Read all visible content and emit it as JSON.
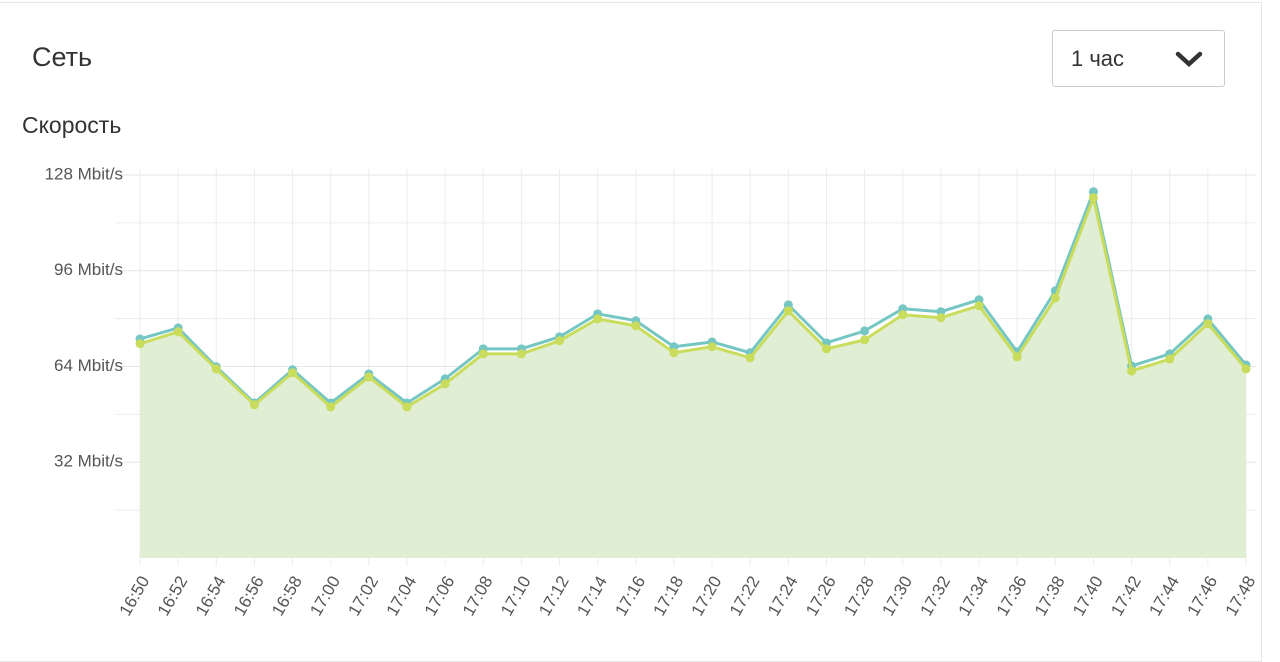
{
  "header": {
    "title": "Сеть",
    "period": "1 час"
  },
  "section": "Скорость",
  "chart_data": {
    "type": "line",
    "categories": [
      "16:50",
      "16:52",
      "16:54",
      "16:56",
      "16:58",
      "17:00",
      "17:02",
      "17:04",
      "17:06",
      "17:08",
      "17:10",
      "17:12",
      "17:14",
      "17:16",
      "17:18",
      "17:20",
      "17:22",
      "17:24",
      "17:26",
      "17:28",
      "17:30",
      "17:32",
      "17:34",
      "17:36",
      "17:38",
      "17:40",
      "17:42",
      "17:44",
      "17:46",
      "17:48"
    ],
    "series": [
      {
        "color": "#76c7c3",
        "values": [
          73.2,
          76.9,
          63.9,
          51.8,
          62.9,
          51.8,
          61.5,
          51.8,
          59.9,
          69.9,
          69.9,
          73.9,
          81.6,
          79.3,
          70.6,
          72.2,
          68.6,
          84.6,
          71.9,
          75.9,
          83.3,
          82.3,
          86.3,
          68.9,
          89.3,
          122.4,
          64.2,
          68.2,
          79.9,
          64.5
        ]
      },
      {
        "color": "#c9dc5c",
        "values": [
          71.6,
          75.6,
          63.2,
          51.2,
          61.9,
          50.5,
          60.5,
          50.5,
          58.2,
          68.2,
          68.2,
          72.6,
          79.9,
          77.6,
          68.6,
          70.6,
          66.9,
          82.6,
          69.9,
          72.9,
          81.3,
          80.3,
          84.3,
          67.2,
          86.9,
          120.4,
          62.5,
          66.5,
          78.3,
          63.2
        ]
      }
    ],
    "area_color": "#e0eed3",
    "ylim": [
      0,
      130
    ],
    "yticks": [
      {
        "value": 32,
        "label": "32 Mbit/s"
      },
      {
        "value": 64,
        "label": "64 Mbit/s"
      },
      {
        "value": 96,
        "label": "96 Mbit/s"
      },
      {
        "value": 128,
        "label": "128 Mbit/s"
      }
    ],
    "minor_yticks": [
      16,
      48,
      80,
      112
    ],
    "grid": true
  }
}
